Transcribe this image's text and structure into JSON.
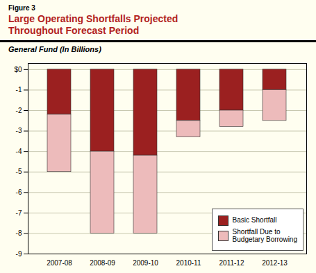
{
  "chart_data": {
    "type": "bar",
    "stacked": true,
    "annotations": [
      "Figure 3"
    ],
    "title": "Large Operating Shortfalls Projected\nThroughout Forecast Period",
    "subtitle": "General Fund (In Billions)",
    "categories": [
      "2007-08",
      "2008-09",
      "2009-10",
      "2010-11",
      "2011-12",
      "2012-13"
    ],
    "series": [
      {
        "name": "Basic Shortfall",
        "color": "#9B2020",
        "values": [
          -2.2,
          -4.0,
          -4.2,
          -2.5,
          -2.0,
          -1.0
        ]
      },
      {
        "name": "Shortfall Due to\nBudgetary Borrowing",
        "color": "#EDBBBB",
        "values": [
          -2.8,
          -4.0,
          -3.8,
          -0.8,
          -0.8,
          -1.5
        ]
      }
    ],
    "ylim": [
      -9,
      0.3
    ],
    "yticks": [
      {
        "value": 0,
        "label": "$0"
      },
      -1,
      -2,
      -3,
      -4,
      -5,
      -6,
      -7,
      -8,
      -9
    ],
    "grid": true,
    "legend": "lower right"
  }
}
